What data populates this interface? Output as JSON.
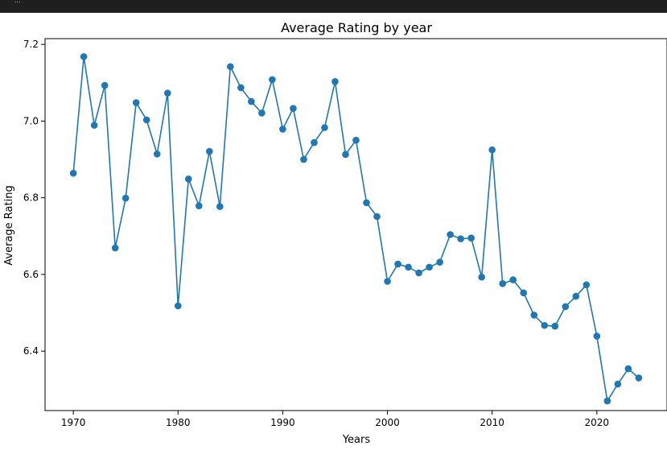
{
  "window": {
    "top_bar_text": "..."
  },
  "chart_data": {
    "type": "line",
    "title": "Average Rating by year",
    "xlabel": "Years",
    "ylabel": "Average Rating",
    "x_ticks": [
      1970,
      1980,
      1990,
      2000,
      2010,
      2020
    ],
    "y_ticks": [
      6.4,
      6.6,
      6.8,
      7.0,
      7.2
    ],
    "xlim": [
      1967.3,
      2026.7
    ],
    "ylim": [
      6.245,
      7.215
    ],
    "grid": false,
    "marker": "circle",
    "colors": {
      "series": "#1f77b4",
      "axis": "#000000",
      "background": "#ffffff"
    },
    "series": [
      {
        "x": [
          1970,
          1971,
          1972,
          1973,
          1974,
          1975,
          1976,
          1977,
          1978,
          1979,
          1980,
          1981,
          1982,
          1983,
          1984,
          1985,
          1986,
          1987,
          1988,
          1989,
          1990,
          1991,
          1992,
          1993,
          1994,
          1995,
          1996,
          1997,
          1998,
          1999,
          2000,
          2001,
          2002,
          2003,
          2004,
          2005,
          2006,
          2007,
          2008,
          2009,
          2010,
          2011,
          2012,
          2013,
          2014,
          2015,
          2016,
          2017,
          2018,
          2019,
          2020,
          2021,
          2022,
          2023,
          2024
        ],
        "values": [
          6.864,
          7.168,
          6.989,
          7.093,
          6.669,
          6.799,
          7.048,
          7.003,
          6.914,
          7.073,
          6.518,
          6.849,
          6.779,
          6.921,
          6.777,
          7.142,
          7.087,
          7.051,
          7.021,
          7.108,
          6.979,
          7.033,
          6.9,
          6.944,
          6.983,
          7.103,
          6.913,
          6.95,
          6.787,
          6.751,
          6.582,
          6.627,
          6.619,
          6.604,
          6.619,
          6.632,
          6.704,
          6.693,
          6.695,
          6.593,
          6.925,
          6.576,
          6.586,
          6.552,
          6.494,
          6.467,
          6.465,
          6.516,
          6.543,
          6.573,
          6.439,
          6.27,
          6.314,
          6.354,
          6.33
        ]
      }
    ]
  }
}
